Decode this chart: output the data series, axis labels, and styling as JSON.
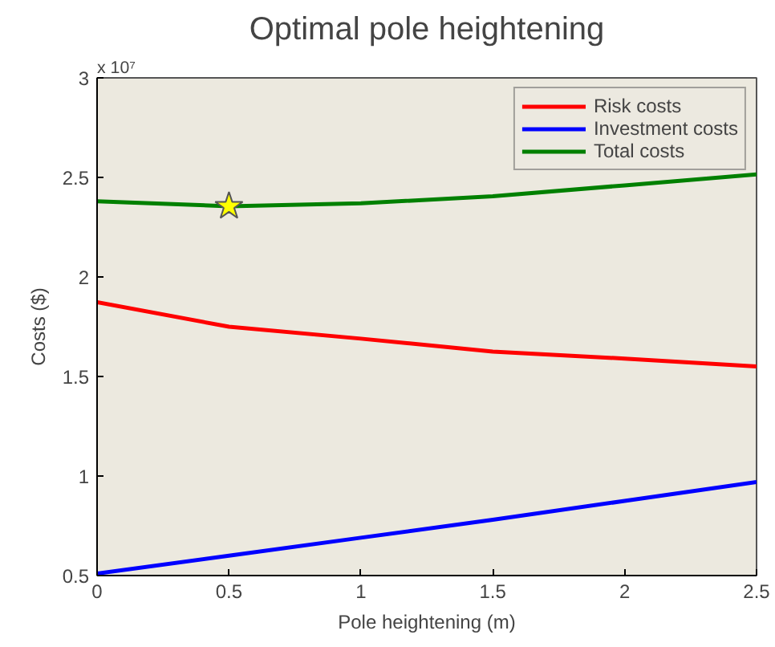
{
  "chart_data": {
    "type": "line",
    "title": "Optimal pole heightening",
    "xlabel": "Pole heightening (m)",
    "ylabel": "Costs ($)",
    "annotations": [
      "x 10⁷"
    ],
    "x": [
      0,
      0.5,
      1,
      1.5,
      2,
      2.5
    ],
    "series": [
      {
        "name": "Risk costs",
        "color": "#ff0000",
        "values": [
          1.873,
          1.75,
          1.69,
          1.625,
          1.59,
          1.55
        ]
      },
      {
        "name": "Investment costs",
        "color": "#0000ff",
        "values": [
          0.51,
          0.6,
          0.69,
          0.78,
          0.875,
          0.97
        ]
      },
      {
        "name": "Total costs",
        "color": "#008000",
        "values": [
          2.38,
          2.355,
          2.37,
          2.405,
          2.46,
          2.515
        ]
      },
      {
        "type": "scatter",
        "marker": "star",
        "color": "#ffff00",
        "x": [
          0.5
        ],
        "values": [
          2.355
        ]
      }
    ],
    "xlim": [
      0,
      2.5
    ],
    "xticks": [
      0,
      0.5,
      1,
      1.5,
      2,
      2.5
    ],
    "ylim": [
      0.5,
      3
    ],
    "yticks": [
      0.5,
      1,
      1.5,
      2,
      2.5,
      3
    ],
    "grid": false,
    "legend": "top right",
    "line_style": "solid",
    "marker": "none"
  }
}
